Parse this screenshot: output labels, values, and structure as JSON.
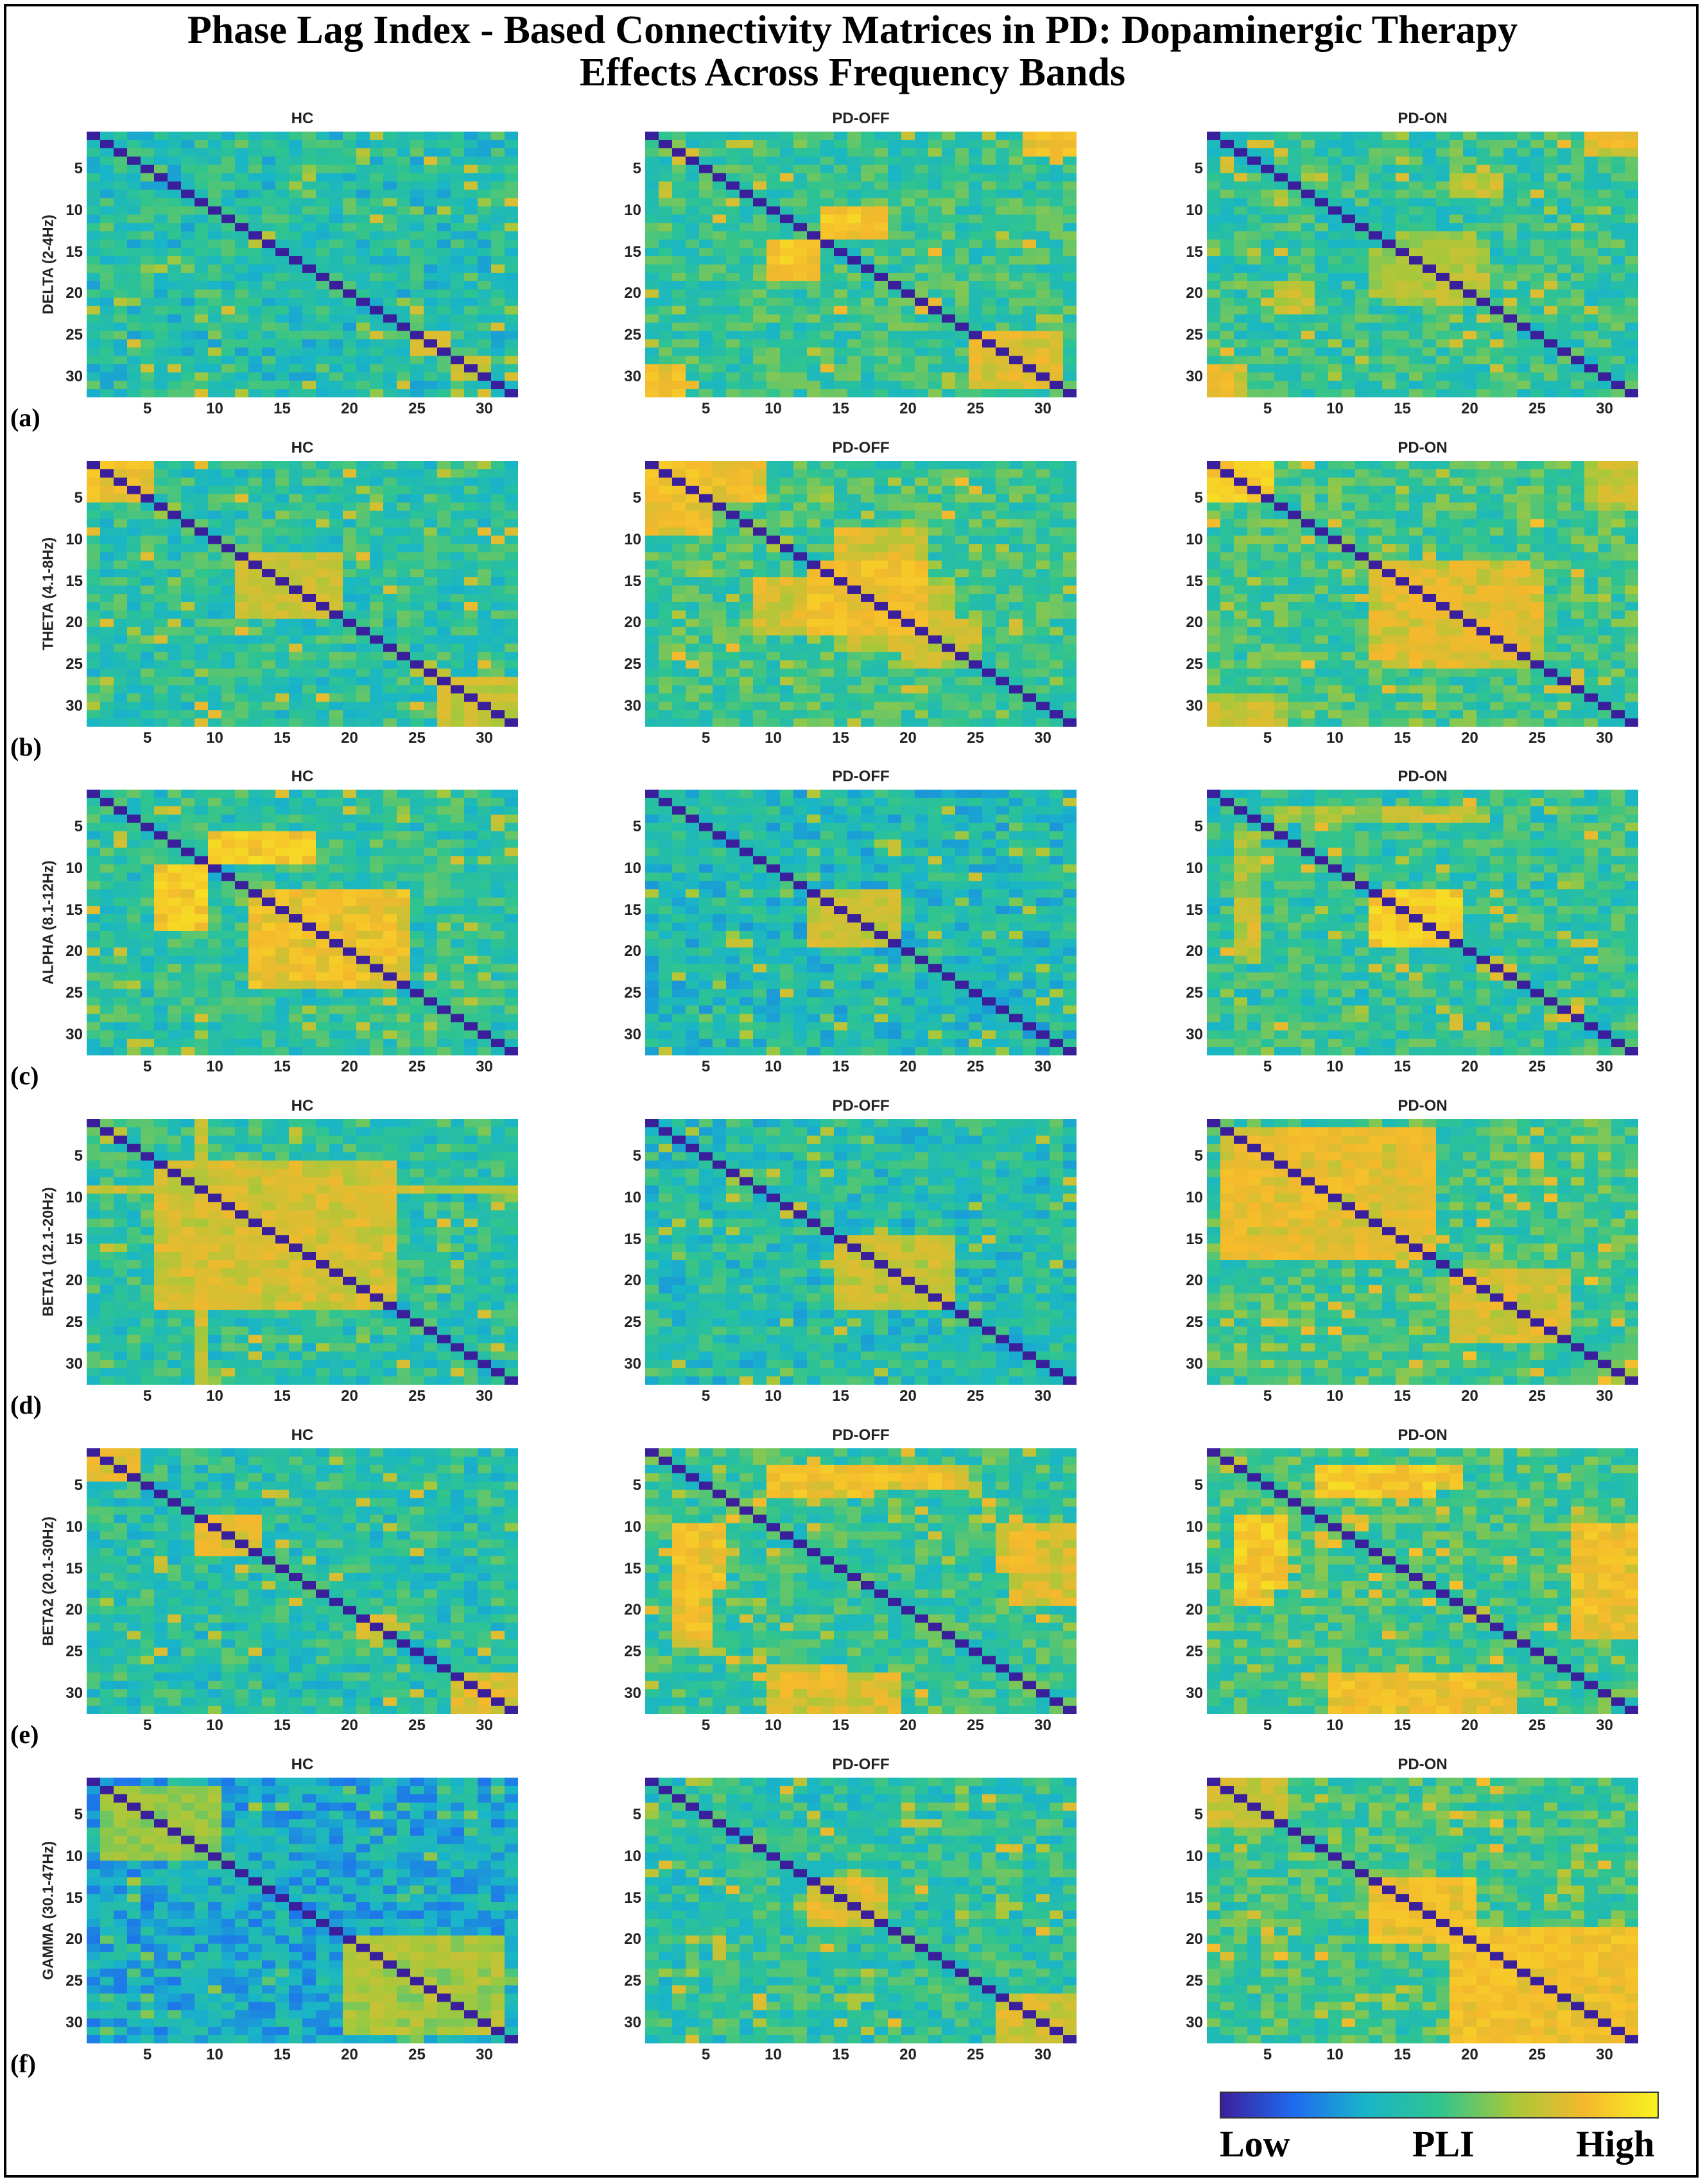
{
  "title_lines": [
    "Phase Lag Index - Based Connectivity Matrices in PD: Dopaminergic Therapy",
    "Effects Across Frequency Bands"
  ],
  "columns": [
    "HC",
    "PD-OFF",
    "PD-ON"
  ],
  "rows": [
    {
      "letter": "(a)",
      "band": "DELTA (2-4Hz)"
    },
    {
      "letter": "(b)",
      "band": "THETA (4.1-8Hz)"
    },
    {
      "letter": "(c)",
      "band": "ALPHA (8.1-12Hz)"
    },
    {
      "letter": "(d)",
      "band": "BETA1 (12.1-20Hz)"
    },
    {
      "letter": "(e)",
      "band": "BETA2 (20.1-30Hz)"
    },
    {
      "letter": "(f)",
      "band": "GAMMA (30.1-47Hz)"
    }
  ],
  "colorbar": {
    "low": "Low",
    "mid": "PLI",
    "high": "High",
    "colors": [
      "#3a1f9c",
      "#1f6bf0",
      "#19b5c8",
      "#2fc48f",
      "#a6c83a",
      "#f5b82d",
      "#f7f31f"
    ]
  },
  "chart_data": {
    "type": "heatmap",
    "matrix_size": 32,
    "ticks": [
      5,
      10,
      15,
      20,
      25,
      30
    ],
    "value_range": [
      0,
      1
    ],
    "diagonal": "min (self-connection)",
    "note_values": "PLI values approximated from color; patterns: C = row/col range pairs with elevated PLI",
    "panels": [
      {
        "row": 0,
        "col": 0,
        "base": 0.42,
        "seed": 11,
        "hot": [
          [
            24,
            26,
            24,
            26,
            0.8
          ],
          [
            27,
            29,
            27,
            29,
            0.75
          ]
        ]
      },
      {
        "row": 0,
        "col": 1,
        "base": 0.48,
        "seed": 23,
        "hot": [
          [
            9,
            12,
            13,
            17,
            0.9
          ],
          [
            13,
            17,
            9,
            12,
            0.85
          ],
          [
            0,
            2,
            28,
            31,
            0.85
          ],
          [
            28,
            31,
            0,
            2,
            0.85
          ],
          [
            24,
            30,
            24,
            30,
            0.8
          ]
        ]
      },
      {
        "row": 0,
        "col": 2,
        "base": 0.47,
        "seed": 37,
        "hot": [
          [
            14,
            19,
            12,
            20,
            0.72
          ],
          [
            0,
            1,
            28,
            31,
            0.85
          ],
          [
            28,
            31,
            0,
            2,
            0.8
          ],
          [
            5,
            7,
            18,
            21,
            0.75
          ]
        ]
      },
      {
        "row": 1,
        "col": 0,
        "base": 0.45,
        "seed": 41,
        "hot": [
          [
            0,
            4,
            0,
            4,
            0.85
          ],
          [
            11,
            18,
            11,
            18,
            0.75
          ],
          [
            26,
            31,
            26,
            31,
            0.75
          ]
        ]
      },
      {
        "row": 1,
        "col": 1,
        "base": 0.5,
        "seed": 53,
        "hot": [
          [
            0,
            4,
            0,
            8,
            0.85
          ],
          [
            12,
            20,
            12,
            20,
            0.85
          ],
          [
            14,
            20,
            8,
            14,
            0.8
          ],
          [
            19,
            22,
            14,
            24,
            0.75
          ]
        ]
      },
      {
        "row": 1,
        "col": 2,
        "base": 0.5,
        "seed": 61,
        "hot": [
          [
            0,
            4,
            0,
            4,
            0.9
          ],
          [
            13,
            23,
            12,
            24,
            0.8
          ],
          [
            0,
            4,
            28,
            31,
            0.75
          ],
          [
            29,
            31,
            0,
            5,
            0.75
          ]
        ]
      },
      {
        "row": 2,
        "col": 0,
        "base": 0.45,
        "seed": 71,
        "hot": [
          [
            9,
            16,
            5,
            8,
            0.9
          ],
          [
            5,
            8,
            9,
            16,
            0.85
          ],
          [
            12,
            22,
            12,
            23,
            0.85
          ]
        ]
      },
      {
        "row": 2,
        "col": 1,
        "base": 0.4,
        "seed": 83,
        "hot": [
          [
            12,
            18,
            12,
            18,
            0.75
          ]
        ]
      },
      {
        "row": 2,
        "col": 2,
        "base": 0.46,
        "seed": 97,
        "hot": [
          [
            12,
            18,
            12,
            18,
            0.9
          ],
          [
            2,
            3,
            5,
            20,
            0.7
          ],
          [
            13,
            18,
            2,
            3,
            0.75
          ]
        ]
      },
      {
        "row": 3,
        "col": 0,
        "base": 0.45,
        "seed": 101,
        "hot": [
          [
            5,
            22,
            5,
            22,
            0.78
          ],
          [
            8,
            8,
            0,
            31,
            0.75
          ]
        ]
      },
      {
        "row": 3,
        "col": 1,
        "base": 0.42,
        "seed": 113,
        "hot": [
          [
            14,
            22,
            14,
            22,
            0.75
          ]
        ]
      },
      {
        "row": 3,
        "col": 2,
        "base": 0.5,
        "seed": 127,
        "hot": [
          [
            1,
            16,
            1,
            16,
            0.82
          ],
          [
            18,
            26,
            18,
            26,
            0.78
          ]
        ]
      },
      {
        "row": 4,
        "col": 0,
        "base": 0.44,
        "seed": 131,
        "hot": [
          [
            0,
            3,
            0,
            3,
            0.8
          ],
          [
            8,
            12,
            8,
            12,
            0.8
          ],
          [
            20,
            22,
            20,
            22,
            0.8
          ],
          [
            27,
            31,
            27,
            31,
            0.8
          ]
        ]
      },
      {
        "row": 4,
        "col": 1,
        "base": 0.48,
        "seed": 139,
        "hot": [
          [
            2,
            4,
            9,
            23,
            0.85
          ],
          [
            9,
            16,
            2,
            5,
            0.85
          ],
          [
            9,
            14,
            26,
            28,
            0.82
          ],
          [
            27,
            31,
            9,
            18,
            0.8
          ]
        ]
      },
      {
        "row": 4,
        "col": 2,
        "base": 0.5,
        "seed": 149,
        "hot": [
          [
            2,
            4,
            9,
            18,
            0.85
          ],
          [
            8,
            16,
            2,
            5,
            0.9
          ],
          [
            9,
            16,
            27,
            31,
            0.85
          ],
          [
            27,
            31,
            9,
            22,
            0.85
          ]
        ]
      },
      {
        "row": 5,
        "col": 0,
        "base": 0.33,
        "seed": 157,
        "hot": [
          [
            19,
            30,
            19,
            30,
            0.7
          ],
          [
            1,
            9,
            1,
            9,
            0.65
          ]
        ]
      },
      {
        "row": 5,
        "col": 1,
        "base": 0.45,
        "seed": 163,
        "hot": [
          [
            12,
            17,
            12,
            17,
            0.8
          ],
          [
            26,
            31,
            26,
            31,
            0.78
          ]
        ]
      },
      {
        "row": 5,
        "col": 2,
        "base": 0.5,
        "seed": 173,
        "hot": [
          [
            12,
            19,
            12,
            19,
            0.85
          ],
          [
            18,
            31,
            18,
            31,
            0.85
          ],
          [
            0,
            5,
            0,
            5,
            0.75
          ]
        ]
      }
    ]
  }
}
